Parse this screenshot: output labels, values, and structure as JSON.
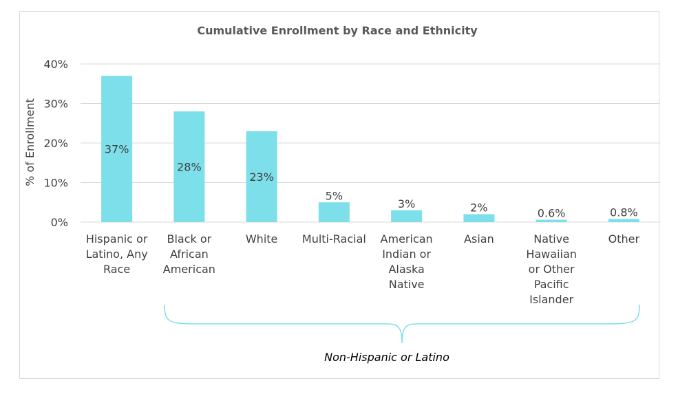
{
  "chart_data": {
    "type": "bar",
    "title": "Cumulative Enrollment by Race and Ethnicity",
    "ylabel": "% of Enrollment",
    "xlabel": "",
    "ylim": [
      0,
      40
    ],
    "yticks": [
      "0%",
      "10%",
      "20%",
      "30%",
      "40%"
    ],
    "grid": true,
    "bar_color": "#7ddfea",
    "categories": [
      [
        "Hispanic or",
        "Latino, Any",
        "Race"
      ],
      [
        "Black or",
        "African",
        "American"
      ],
      [
        "White"
      ],
      [
        "Multi-Racial"
      ],
      [
        "American",
        "Indian or",
        "Alaska",
        "Native"
      ],
      [
        "Asian"
      ],
      [
        "Native",
        "Hawaiian",
        "or Other",
        "Pacific",
        "Islander"
      ],
      [
        "Other"
      ]
    ],
    "values": [
      37,
      28,
      23,
      5,
      3,
      2,
      0.6,
      0.8
    ],
    "data_labels": [
      "37%",
      "28%",
      "23%",
      "5%",
      "3%",
      "2%",
      "0.6%",
      "0.8%"
    ],
    "annotation": {
      "text": "Non-Hispanic or Latino",
      "brace_color": "#7ddfea"
    }
  }
}
